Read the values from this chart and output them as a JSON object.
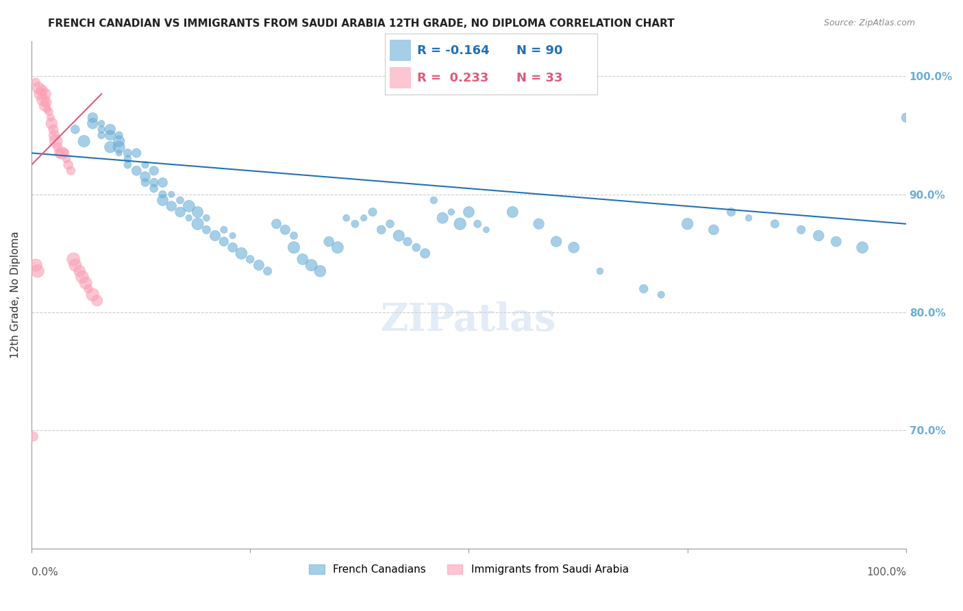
{
  "title": "FRENCH CANADIAN VS IMMIGRANTS FROM SAUDI ARABIA 12TH GRADE, NO DIPLOMA CORRELATION CHART",
  "source_text": "Source: ZipAtlas.com",
  "ylabel": "12th Grade, No Diploma",
  "y_tick_labels": [
    "100.0%",
    "90.0%",
    "80.0%",
    "70.0%"
  ],
  "y_tick_values": [
    1.0,
    0.9,
    0.8,
    0.7
  ],
  "x_range": [
    0.0,
    1.0
  ],
  "y_range": [
    0.6,
    1.03
  ],
  "blue_color": "#6baed6",
  "pink_color": "#fa9fb5",
  "blue_line_color": "#2171b5",
  "pink_line_color": "#e05a7a",
  "legend_R_blue": "-0.164",
  "legend_N_blue": "90",
  "legend_R_pink": "0.233",
  "legend_N_pink": "33",
  "watermark": "ZIPatlas",
  "blue_scatter_x": [
    0.05,
    0.06,
    0.07,
    0.07,
    0.08,
    0.08,
    0.08,
    0.09,
    0.09,
    0.09,
    0.1,
    0.1,
    0.1,
    0.1,
    0.11,
    0.11,
    0.11,
    0.12,
    0.12,
    0.13,
    0.13,
    0.13,
    0.14,
    0.14,
    0.14,
    0.15,
    0.15,
    0.15,
    0.16,
    0.16,
    0.17,
    0.17,
    0.18,
    0.18,
    0.19,
    0.19,
    0.2,
    0.2,
    0.21,
    0.22,
    0.22,
    0.23,
    0.23,
    0.24,
    0.25,
    0.26,
    0.27,
    0.28,
    0.29,
    0.3,
    0.3,
    0.31,
    0.32,
    0.33,
    0.34,
    0.35,
    0.36,
    0.37,
    0.38,
    0.39,
    0.4,
    0.41,
    0.42,
    0.43,
    0.44,
    0.45,
    0.46,
    0.47,
    0.48,
    0.49,
    0.5,
    0.51,
    0.52,
    0.55,
    0.58,
    0.6,
    0.62,
    0.65,
    0.7,
    0.72,
    0.75,
    0.78,
    0.8,
    0.82,
    0.85,
    0.88,
    0.9,
    0.92,
    0.95,
    1.0
  ],
  "blue_scatter_y": [
    0.955,
    0.945,
    0.96,
    0.965,
    0.95,
    0.955,
    0.96,
    0.94,
    0.95,
    0.955,
    0.935,
    0.94,
    0.945,
    0.95,
    0.925,
    0.93,
    0.935,
    0.92,
    0.935,
    0.91,
    0.915,
    0.925,
    0.905,
    0.91,
    0.92,
    0.895,
    0.9,
    0.91,
    0.89,
    0.9,
    0.885,
    0.895,
    0.88,
    0.89,
    0.875,
    0.885,
    0.87,
    0.88,
    0.865,
    0.86,
    0.87,
    0.855,
    0.865,
    0.85,
    0.845,
    0.84,
    0.835,
    0.875,
    0.87,
    0.865,
    0.855,
    0.845,
    0.84,
    0.835,
    0.86,
    0.855,
    0.88,
    0.875,
    0.88,
    0.885,
    0.87,
    0.875,
    0.865,
    0.86,
    0.855,
    0.85,
    0.895,
    0.88,
    0.885,
    0.875,
    0.885,
    0.875,
    0.87,
    0.885,
    0.875,
    0.86,
    0.855,
    0.835,
    0.82,
    0.815,
    0.875,
    0.87,
    0.885,
    0.88,
    0.875,
    0.87,
    0.865,
    0.86,
    0.855,
    0.965
  ],
  "pink_scatter_x": [
    0.005,
    0.008,
    0.01,
    0.012,
    0.013,
    0.015,
    0.016,
    0.017,
    0.018,
    0.02,
    0.022,
    0.023,
    0.025,
    0.026,
    0.028,
    0.03,
    0.032,
    0.035,
    0.038,
    0.04,
    0.042,
    0.045,
    0.048,
    0.05,
    0.055,
    0.058,
    0.062,
    0.065,
    0.07,
    0.075,
    0.005,
    0.007,
    0.002
  ],
  "pink_scatter_y": [
    0.995,
    0.99,
    0.985,
    0.988,
    0.98,
    0.975,
    0.985,
    0.978,
    0.972,
    0.97,
    0.965,
    0.96,
    0.955,
    0.95,
    0.945,
    0.94,
    0.935,
    0.935,
    0.935,
    0.93,
    0.925,
    0.92,
    0.845,
    0.84,
    0.835,
    0.83,
    0.825,
    0.82,
    0.815,
    0.81,
    0.84,
    0.835,
    0.695
  ],
  "blue_line_x": [
    0.0,
    1.0
  ],
  "blue_line_y_start": 0.935,
  "blue_line_y_end": 0.875,
  "pink_line_x": [
    0.0,
    0.08
  ],
  "pink_line_y_start": 0.925,
  "pink_line_y_end": 0.985,
  "title_fontsize": 11,
  "axis_label_fontsize": 11,
  "tick_fontsize": 11,
  "legend_fontsize": 13,
  "watermark_fontsize": 40
}
